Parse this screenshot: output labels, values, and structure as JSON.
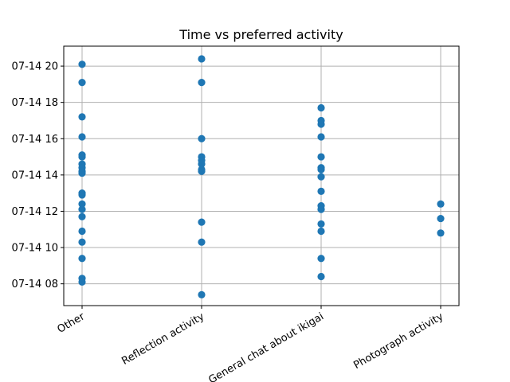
{
  "chart_data": {
    "type": "scatter",
    "title": "Time vs preferred activity",
    "xlabel": "",
    "ylabel": "",
    "categories": [
      "Other",
      "Reflection activity",
      "General chat about ikigai",
      "Photograph activity"
    ],
    "y_axis_unit": "hours on 07-14",
    "ylim": [
      6.8,
      21.1
    ],
    "y_ticks": [
      8,
      10,
      12,
      14,
      16,
      18,
      20
    ],
    "y_tick_labels": [
      "07-14 08",
      "07-14 10",
      "07-14 12",
      "07-14 14",
      "07-14 16",
      "07-14 18",
      "07-14 20"
    ],
    "grid": true,
    "color": "#1f77b4",
    "points": [
      {
        "x": "Other",
        "y": 20.1
      },
      {
        "x": "Other",
        "y": 19.1
      },
      {
        "x": "Other",
        "y": 17.2
      },
      {
        "x": "Other",
        "y": 16.1
      },
      {
        "x": "Other",
        "y": 15.1
      },
      {
        "x": "Other",
        "y": 15.0
      },
      {
        "x": "Other",
        "y": 14.6
      },
      {
        "x": "Other",
        "y": 14.4
      },
      {
        "x": "Other",
        "y": 14.2
      },
      {
        "x": "Other",
        "y": 14.1
      },
      {
        "x": "Other",
        "y": 13.0
      },
      {
        "x": "Other",
        "y": 12.9
      },
      {
        "x": "Other",
        "y": 12.4
      },
      {
        "x": "Other",
        "y": 12.1
      },
      {
        "x": "Other",
        "y": 11.7
      },
      {
        "x": "Other",
        "y": 10.9
      },
      {
        "x": "Other",
        "y": 10.3
      },
      {
        "x": "Other",
        "y": 9.4
      },
      {
        "x": "Other",
        "y": 8.3
      },
      {
        "x": "Other",
        "y": 8.1
      },
      {
        "x": "Reflection activity",
        "y": 20.4
      },
      {
        "x": "Reflection activity",
        "y": 19.1
      },
      {
        "x": "Reflection activity",
        "y": 16.0
      },
      {
        "x": "Reflection activity",
        "y": 15.0
      },
      {
        "x": "Reflection activity",
        "y": 14.8
      },
      {
        "x": "Reflection activity",
        "y": 14.6
      },
      {
        "x": "Reflection activity",
        "y": 14.3
      },
      {
        "x": "Reflection activity",
        "y": 14.2
      },
      {
        "x": "Reflection activity",
        "y": 11.4
      },
      {
        "x": "Reflection activity",
        "y": 10.3
      },
      {
        "x": "Reflection activity",
        "y": 7.4
      },
      {
        "x": "General chat about ikigai",
        "y": 17.7
      },
      {
        "x": "General chat about ikigai",
        "y": 17.0
      },
      {
        "x": "General chat about ikigai",
        "y": 16.8
      },
      {
        "x": "General chat about ikigai",
        "y": 16.1
      },
      {
        "x": "General chat about ikigai",
        "y": 15.0
      },
      {
        "x": "General chat about ikigai",
        "y": 14.4
      },
      {
        "x": "General chat about ikigai",
        "y": 14.3
      },
      {
        "x": "General chat about ikigai",
        "y": 13.9
      },
      {
        "x": "General chat about ikigai",
        "y": 13.1
      },
      {
        "x": "General chat about ikigai",
        "y": 12.3
      },
      {
        "x": "General chat about ikigai",
        "y": 12.1
      },
      {
        "x": "General chat about ikigai",
        "y": 11.3
      },
      {
        "x": "General chat about ikigai",
        "y": 10.9
      },
      {
        "x": "General chat about ikigai",
        "y": 9.4
      },
      {
        "x": "General chat about ikigai",
        "y": 8.4
      },
      {
        "x": "Photograph activity",
        "y": 12.4
      },
      {
        "x": "Photograph activity",
        "y": 11.6
      },
      {
        "x": "Photograph activity",
        "y": 10.8
      }
    ]
  }
}
